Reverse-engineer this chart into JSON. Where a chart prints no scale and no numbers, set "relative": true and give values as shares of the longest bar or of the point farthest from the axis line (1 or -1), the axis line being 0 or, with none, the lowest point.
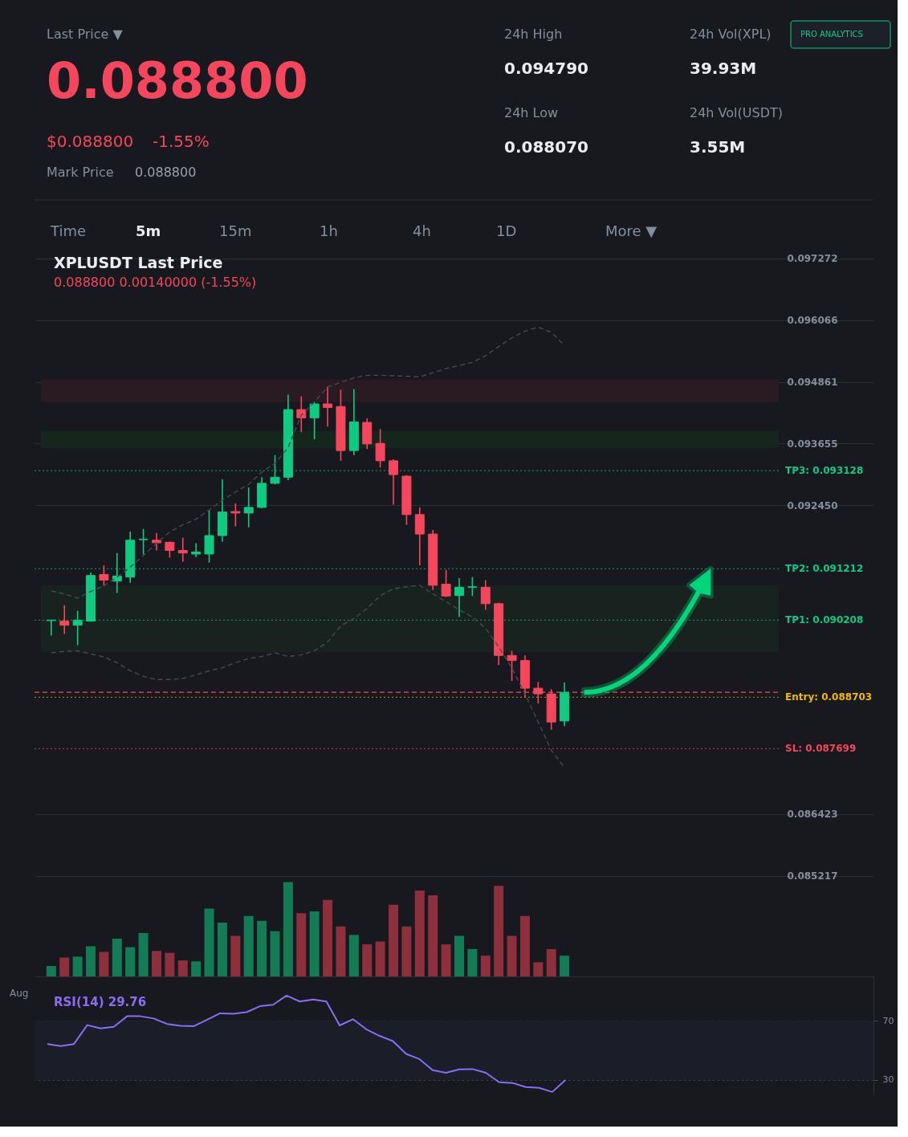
{
  "chart_data": [
    {
      "type": "other",
      "annotations": [
        "Last Price ▼",
        "0.088800",
        "$0.088800",
        "-1.55%",
        "Mark Price",
        "0.088800",
        "24h High",
        "0.094790",
        "24h Vol(XPL)",
        "39.93M",
        "24h Low",
        "0.088070",
        "24h Vol(USDT)",
        "3.55M",
        "PRO ANALYTICS",
        "Time",
        "5m",
        "15m",
        "1h",
        "4h",
        "1D",
        "More ▼"
      ]
    },
    {
      "type": "candlestick",
      "title": "XPLUSDT Last Price",
      "subtitle": "0.088800  0.00140000 (-1.55%)",
      "categories": [
        null,
        null,
        null,
        null,
        null,
        null,
        null,
        null,
        null,
        null,
        null,
        null,
        null,
        null,
        null,
        null,
        null,
        null,
        null,
        null,
        null,
        null,
        null,
        null,
        null,
        null,
        null,
        null,
        null,
        null,
        null,
        null,
        null,
        null,
        null,
        null,
        null,
        null,
        null,
        null
      ],
      "ohlc": [
        [
          0.0902,
          0.09021,
          0.08991,
          0.09021
        ],
        [
          0.09019,
          0.0905,
          0.08994,
          0.09011
        ],
        [
          0.09011,
          0.09039,
          0.08972,
          0.09021
        ],
        [
          0.09019,
          0.09114,
          0.09018,
          0.09108
        ],
        [
          0.0911,
          0.09128,
          0.09088,
          0.09099
        ],
        [
          0.09097,
          0.09152,
          0.09074,
          0.09107
        ],
        [
          0.09105,
          0.09194,
          0.09094,
          0.09177
        ],
        [
          0.09178,
          0.09199,
          0.09149,
          0.09179
        ],
        [
          0.09177,
          0.09191,
          0.09157,
          0.09172
        ],
        [
          0.09173,
          0.09174,
          0.09143,
          0.09157
        ],
        [
          0.09157,
          0.09182,
          0.09135,
          0.09152
        ],
        [
          0.0915,
          0.09171,
          0.09144,
          0.09154
        ],
        [
          0.0915,
          0.09235,
          0.09133,
          0.09186
        ],
        [
          0.09186,
          0.09296,
          0.09174,
          0.09232
        ],
        [
          0.09233,
          0.09249,
          0.09204,
          0.0923
        ],
        [
          0.0923,
          0.0928,
          0.09202,
          0.09241
        ],
        [
          0.09241,
          0.093,
          0.09239,
          0.09288
        ],
        [
          0.09288,
          0.09343,
          0.09286,
          0.093
        ],
        [
          0.093,
          0.09461,
          0.09294,
          0.09432
        ],
        [
          0.09432,
          0.09458,
          0.09388,
          0.09416
        ],
        [
          0.09416,
          0.09447,
          0.09374,
          0.09443
        ],
        [
          0.09443,
          0.09477,
          0.09399,
          0.09436
        ],
        [
          0.09438,
          0.09471,
          0.09332,
          0.09352
        ],
        [
          0.09352,
          0.09472,
          0.09343,
          0.09408
        ],
        [
          0.09407,
          0.09415,
          0.09355,
          0.09365
        ],
        [
          0.09366,
          0.09394,
          0.09319,
          0.09332
        ],
        [
          0.09332,
          0.09335,
          0.09246,
          0.09305
        ],
        [
          0.09302,
          0.09304,
          0.09207,
          0.09227
        ],
        [
          0.09227,
          0.09241,
          0.09128,
          0.09189
        ],
        [
          0.09189,
          0.09197,
          0.0908,
          0.09089
        ],
        [
          0.09091,
          0.09119,
          0.09066,
          0.09068
        ],
        [
          0.09069,
          0.09103,
          0.09027,
          0.09085
        ],
        [
          0.09085,
          0.09105,
          0.09068,
          0.09086
        ],
        [
          0.09085,
          0.09099,
          0.09041,
          0.09053
        ],
        [
          0.09053,
          0.09055,
          0.08933,
          0.08952
        ],
        [
          0.08952,
          0.08961,
          0.08902,
          0.08942
        ],
        [
          0.08942,
          0.08952,
          0.08871,
          0.08888
        ],
        [
          0.08888,
          0.089,
          0.08858,
          0.08877
        ],
        [
          0.08877,
          0.08886,
          0.08807,
          0.08822
        ],
        [
          0.08824,
          0.08899,
          0.08814,
          0.0888
        ]
      ],
      "colors": [
        "#0ecb81",
        "#f6465d",
        "#0ecb81",
        "#0ecb81",
        "#f6465d",
        "#0ecb81",
        "#0ecb81",
        "#0ecb81",
        "#f6465d",
        "#f6465d",
        "#f6465d",
        "#0ecb81",
        "#0ecb81",
        "#0ecb81",
        "#f6465d",
        "#0ecb81",
        "#0ecb81",
        "#0ecb81",
        "#0ecb81",
        "#f6465d",
        "#0ecb81",
        "#f6465d",
        "#f6465d",
        "#0ecb81",
        "#f6465d",
        "#f6465d",
        "#f6465d",
        "#f6465d",
        "#f6465d",
        "#f6465d",
        "#f6465d",
        "#0ecb81",
        "#0ecb81",
        "#f6465d",
        "#f6465d",
        "#f6465d",
        "#f6465d",
        "#f6465d",
        "#f6465d",
        "#0ecb81"
      ],
      "series": [
        {
          "type": "line",
          "color": "#444a55",
          "values": [
            0.09078,
            0.09072,
            0.09064,
            0.09077,
            0.09088,
            0.09105,
            0.09124,
            0.09147,
            0.09171,
            0.09193,
            0.09207,
            0.09218,
            0.09236,
            0.09255,
            0.09271,
            0.09286,
            0.0931,
            0.09327,
            0.09358,
            0.09421,
            0.09447,
            0.09476,
            0.09485,
            0.09494,
            0.09499,
            0.09499,
            0.09498,
            0.09497,
            0.09496,
            0.09504,
            0.09512,
            0.09518,
            0.09524,
            0.09537,
            0.09555,
            0.09572,
            0.09585,
            0.09593,
            0.09583,
            0.09557
          ]
        },
        {
          "type": "line",
          "color": "#444a55",
          "values": [
            0.08957,
            0.0896,
            0.08961,
            0.08955,
            0.08949,
            0.08938,
            0.08922,
            0.08911,
            0.08905,
            0.08905,
            0.08907,
            0.08914,
            0.08922,
            0.08928,
            0.08938,
            0.08946,
            0.0895,
            0.08957,
            0.0895,
            0.08953,
            0.08961,
            0.08978,
            0.0901,
            0.09024,
            0.09044,
            0.09069,
            0.09082,
            0.09086,
            0.09089,
            0.09072,
            0.09057,
            0.09041,
            0.09027,
            0.09005,
            0.08969,
            0.08927,
            0.08877,
            0.08822,
            0.08767,
            0.08733
          ]
        }
      ],
      "line_style": "dashed",
      "ylim": [
        0.08515,
        0.0973
      ],
      "yticks": [
        0.097272,
        0.096066,
        0.094861,
        0.093655,
        {
          "value": 0.09245,
          "label": "0.092450"
        },
        0.086423,
        0.085217
      ],
      "grid": "y",
      "ref_lines": [
        {
          "axis": "y",
          "value": 0.093128,
          "label": "TP3: 0.093128",
          "color": "#0ecb81",
          "line_style": "dotted"
        },
        {
          "axis": "y",
          "value": 0.091212,
          "label": "TP2: 0.091212",
          "color": "#0ecb81",
          "line_style": "dotted"
        },
        {
          "axis": "y",
          "value": 0.090208,
          "label": "TP1: 0.090208",
          "color": "#0ecb81",
          "line_style": "dotted"
        },
        {
          "axis": "y",
          "value": 0.0888,
          "color": "#f6465d",
          "line_style": "dashed"
        },
        {
          "axis": "y",
          "value": 0.088703,
          "label": "Entry: 0.088703",
          "color": "#f0b90b",
          "line_style": "dotted"
        },
        {
          "axis": "y",
          "value": 0.087699,
          "label": "SL: 0.087699",
          "color": "#f6465d",
          "line_style": "dotted"
        }
      ],
      "bands": [
        {
          "axis": "y",
          "from": 0.09447,
          "to": 0.09491,
          "color": "#2a1a21"
        },
        {
          "axis": "y",
          "from": 0.09357,
          "to": 0.0939,
          "color": "#15261f"
        },
        {
          "axis": "y",
          "from": 0.08958,
          "to": 0.09089,
          "color": "#18231f"
        }
      ]
    },
    {
      "type": "bar",
      "relative": true,
      "categories": [
        null,
        null,
        null,
        null,
        null,
        null,
        null,
        null,
        null,
        null,
        null,
        null,
        null,
        null,
        null,
        null,
        null,
        null,
        null,
        null,
        null,
        null,
        null,
        null,
        null,
        null,
        null,
        null,
        null,
        null,
        null,
        null,
        null,
        null,
        null,
        null,
        null,
        null,
        null,
        null
      ],
      "values": [
        0.11,
        0.2,
        0.21,
        0.32,
        0.26,
        0.4,
        0.31,
        0.46,
        0.27,
        0.25,
        0.17,
        0.16,
        0.72,
        0.57,
        0.43,
        0.64,
        0.59,
        0.48,
        1,
        0.67,
        0.69,
        0.81,
        0.53,
        0.44,
        0.34,
        0.37,
        0.76,
        0.53,
        0.91,
        0.86,
        0.34,
        0.43,
        0.29,
        0.22,
        0.96,
        0.43,
        0.64,
        0.15,
        0.29,
        0.22
      ],
      "colors": [
        "#137b55",
        "#8e2f3d",
        "#137b55",
        "#137b55",
        "#8e2f3d",
        "#137b55",
        "#137b55",
        "#137b55",
        "#8e2f3d",
        "#8e2f3d",
        "#8e2f3d",
        "#137b55",
        "#137b55",
        "#137b55",
        "#8e2f3d",
        "#137b55",
        "#137b55",
        "#137b55",
        "#137b55",
        "#8e2f3d",
        "#137b55",
        "#8e2f3d",
        "#8e2f3d",
        "#137b55",
        "#8e2f3d",
        "#8e2f3d",
        "#8e2f3d",
        "#8e2f3d",
        "#8e2f3d",
        "#8e2f3d",
        "#8e2f3d",
        "#137b55",
        "#137b55",
        "#8e2f3d",
        "#8e2f3d",
        "#8e2f3d",
        "#8e2f3d",
        "#8e2f3d",
        "#8e2f3d",
        "#137b55"
      ]
    },
    {
      "type": "line",
      "title": "RSI(14)  29.76",
      "categories": [
        null,
        null,
        null,
        null,
        null,
        null,
        null,
        null,
        null,
        null,
        null,
        null,
        null,
        null,
        null,
        null,
        null,
        null,
        null,
        null,
        null,
        null,
        null,
        null,
        null,
        null,
        null,
        null,
        null,
        null,
        null,
        null,
        null,
        null,
        null,
        null,
        null,
        null,
        null,
        null
      ],
      "series": [
        {
          "color": "#8b6cf5",
          "values": [
            54.2,
            52.8,
            54.2,
            67.0,
            64.8,
            65.8,
            73.0,
            73.0,
            71.5,
            67.8,
            66.5,
            66.2,
            70.5,
            75.0,
            74.7,
            75.8,
            79.8,
            80.8,
            87.0,
            83.0,
            84.3,
            83.0,
            66.8,
            71.0,
            64.2,
            59.7,
            56.2,
            47.5,
            44.0,
            36.5,
            34.7,
            37.0,
            37.2,
            34.7,
            28.3,
            27.8,
            25.0,
            24.5,
            21.7,
            29.76
          ]
        }
      ],
      "ylim": [
        20,
        100
      ],
      "yticks": [
        70,
        30
      ],
      "grid": "y",
      "bands": [
        {
          "axis": "y",
          "from": 30,
          "to": 70,
          "color": "#1b1d29"
        }
      ],
      "annotations": [
        "Aug"
      ]
    }
  ]
}
